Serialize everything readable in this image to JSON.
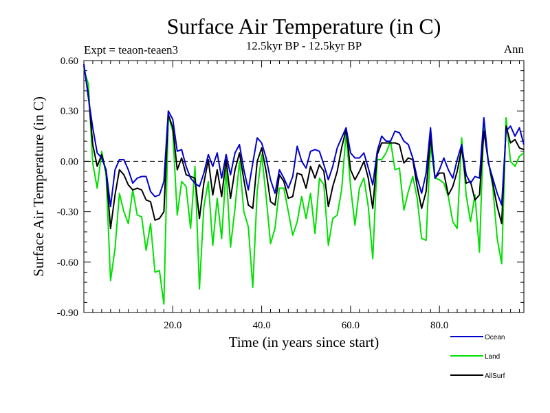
{
  "chart_data": {
    "type": "line",
    "title": "Surface Air Temperature (in C)",
    "subtitle": "12.5kyr BP - 12.5kyr BP",
    "expt_label": "Expt = teaon-teaen3",
    "season_label": "Ann",
    "xlabel": "Time (in years since start)",
    "ylabel": "Surface Air Temperature (in C)",
    "xlim": [
      0,
      99
    ],
    "ylim": [
      -0.9,
      0.6
    ],
    "x_ticks": [
      20,
      40,
      60,
      80
    ],
    "x_tick_labels": [
      "20.0",
      "40.0",
      "60.0",
      "80.0"
    ],
    "y_ticks": [
      0.6,
      0.3,
      0.0,
      -0.3,
      -0.6,
      -0.9
    ],
    "y_tick_labels": [
      "0.60",
      "0.30",
      "0.00",
      "-0.30",
      "-0.60",
      "-0.90"
    ],
    "zero_line": "dashed",
    "x": [
      0,
      1,
      2,
      3,
      4,
      5,
      6,
      7,
      8,
      9,
      10,
      11,
      12,
      13,
      14,
      15,
      16,
      17,
      18,
      19,
      20,
      21,
      22,
      23,
      24,
      25,
      26,
      27,
      28,
      29,
      30,
      31,
      32,
      33,
      34,
      35,
      36,
      37,
      38,
      39,
      40,
      41,
      42,
      43,
      44,
      45,
      46,
      47,
      48,
      49,
      50,
      51,
      52,
      53,
      54,
      55,
      56,
      57,
      58,
      59,
      60,
      61,
      62,
      63,
      64,
      65,
      66,
      67,
      68,
      69,
      70,
      71,
      72,
      73,
      74,
      75,
      76,
      77,
      78,
      79,
      80,
      81,
      82,
      83,
      84,
      85,
      86,
      87,
      88,
      89,
      90,
      91,
      92,
      93,
      94,
      95,
      96,
      97,
      98,
      99
    ],
    "series": [
      {
        "name": "Ocean",
        "color": "#0000cc",
        "values": [
          0.58,
          0.38,
          0.2,
          0.05,
          0.02,
          -0.05,
          -0.27,
          -0.05,
          0.01,
          0.01,
          -0.05,
          -0.13,
          -0.1,
          -0.09,
          -0.09,
          -0.18,
          -0.21,
          -0.2,
          -0.12,
          0.3,
          0.25,
          0.06,
          0.07,
          -0.03,
          -0.1,
          -0.13,
          -0.15,
          -0.07,
          0.04,
          -0.03,
          0.05,
          -0.1,
          0.04,
          -0.08,
          0.05,
          0.1,
          -0.05,
          -0.17,
          -0.01,
          0.14,
          0.11,
          0.02,
          -0.11,
          -0.19,
          -0.05,
          -0.1,
          -0.16,
          -0.09,
          0.09,
          0.0,
          -0.04,
          0.06,
          0.07,
          0.06,
          -0.02,
          -0.11,
          -0.03,
          0.08,
          0.14,
          0.2,
          0.05,
          0.02,
          0.02,
          0.05,
          -0.04,
          -0.14,
          0.06,
          0.15,
          0.12,
          0.12,
          0.18,
          0.17,
          0.12,
          0.1,
          0.02,
          -0.1,
          -0.19,
          -0.07,
          0.2,
          -0.1,
          -0.05,
          0.02,
          -0.05,
          -0.1,
          0.01,
          0.1,
          -0.08,
          -0.13,
          -0.09,
          -0.1,
          0.26,
          -0.01,
          -0.1,
          -0.19,
          -0.26,
          0.18,
          0.21,
          0.15,
          0.2,
          0.1
        ]
      },
      {
        "name": "Land",
        "color": "#00e000",
        "values": [
          0.55,
          0.46,
          -0.01,
          -0.16,
          0.06,
          -0.08,
          -0.71,
          -0.52,
          -0.19,
          -0.3,
          -0.37,
          -0.17,
          -0.32,
          -0.33,
          -0.53,
          -0.37,
          -0.66,
          -0.65,
          -0.85,
          0.27,
          0.18,
          -0.32,
          -0.12,
          -0.15,
          -0.4,
          -0.03,
          -0.76,
          -0.27,
          -0.12,
          -0.5,
          -0.22,
          -0.46,
          -0.04,
          -0.51,
          -0.28,
          0.0,
          -0.3,
          -0.39,
          -0.75,
          -0.18,
          0.04,
          -0.21,
          -0.49,
          -0.4,
          -0.16,
          -0.16,
          -0.3,
          -0.44,
          -0.36,
          -0.21,
          -0.34,
          -0.19,
          -0.43,
          -0.1,
          -0.14,
          -0.5,
          -0.34,
          -0.32,
          -0.17,
          0.17,
          -0.15,
          -0.38,
          -0.16,
          -0.1,
          -0.27,
          -0.58,
          0.01,
          0.01,
          0.05,
          0.12,
          -0.05,
          -0.04,
          -0.29,
          -0.18,
          -0.09,
          -0.22,
          -0.46,
          -0.47,
          0.1,
          -0.1,
          -0.11,
          -0.13,
          -0.21,
          -0.36,
          -0.4,
          0.14,
          -0.2,
          -0.36,
          -0.2,
          -0.54,
          0.24,
          0.0,
          -0.15,
          -0.46,
          -0.61,
          0.26,
          0.0,
          -0.03,
          0.03,
          0.05
        ]
      },
      {
        "name": "AllSurf",
        "color": "#000000",
        "values": [
          0.57,
          0.4,
          0.1,
          -0.03,
          0.04,
          -0.06,
          -0.4,
          -0.2,
          -0.05,
          -0.08,
          -0.14,
          -0.17,
          -0.16,
          -0.17,
          -0.23,
          -0.24,
          -0.35,
          -0.34,
          -0.3,
          0.28,
          0.2,
          -0.05,
          0.02,
          -0.08,
          -0.09,
          -0.1,
          -0.34,
          -0.13,
          0.01,
          -0.2,
          -0.05,
          -0.21,
          0.01,
          -0.22,
          -0.05,
          0.05,
          -0.11,
          -0.26,
          -0.28,
          0.0,
          0.08,
          -0.06,
          -0.24,
          -0.26,
          -0.08,
          -0.12,
          -0.22,
          -0.21,
          -0.07,
          -0.08,
          -0.16,
          -0.03,
          -0.1,
          -0.02,
          -0.06,
          -0.27,
          -0.15,
          -0.06,
          0.08,
          0.19,
          -0.05,
          -0.11,
          -0.06,
          0.0,
          -0.1,
          -0.28,
          0.04,
          0.11,
          0.11,
          0.11,
          0.11,
          0.1,
          -0.01,
          0.02,
          0.01,
          -0.15,
          -0.28,
          -0.18,
          0.15,
          -0.1,
          -0.07,
          -0.07,
          -0.2,
          -0.15,
          -0.06,
          0.08,
          -0.13,
          -0.12,
          -0.23,
          -0.2,
          0.18,
          0.0,
          -0.13,
          -0.27,
          -0.37,
          0.21,
          0.11,
          0.13,
          0.08,
          0.07
        ]
      }
    ]
  }
}
